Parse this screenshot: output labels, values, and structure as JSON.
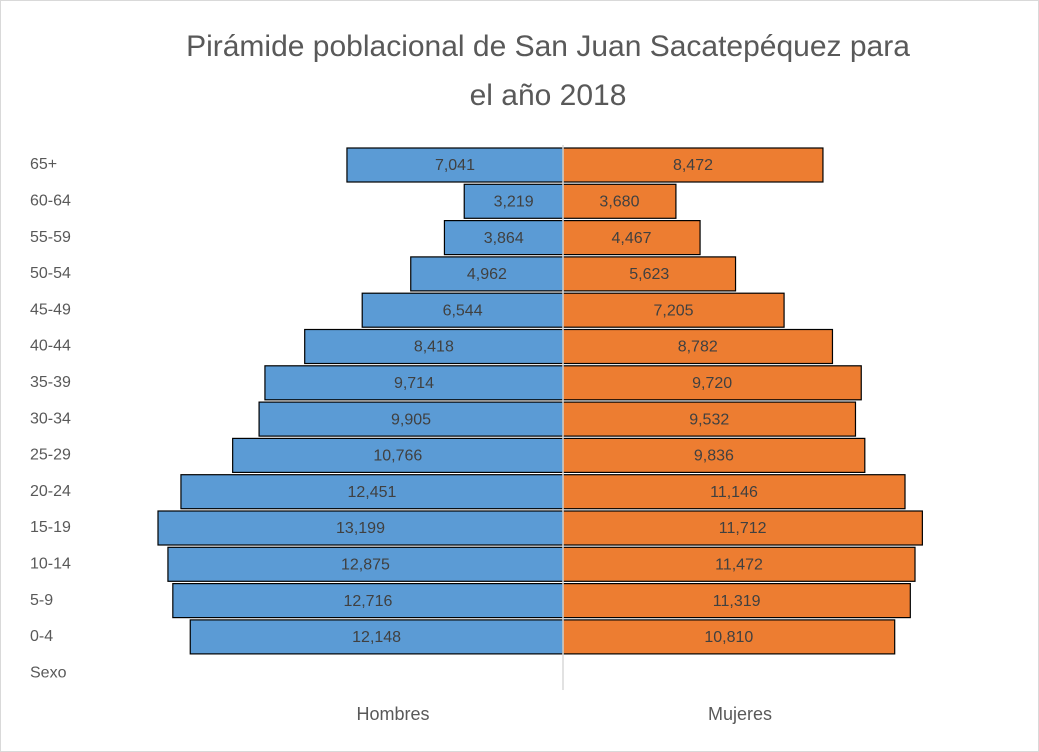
{
  "chart_data": {
    "type": "pyramid",
    "title": [
      "Pirámide poblacional de San Juan Sacatepéquez para",
      "el año 2018"
    ],
    "categories": [
      "65+",
      "60-64",
      "55-59",
      "50-54",
      "45-49",
      "40-44",
      "35-39",
      "30-34",
      "25-29",
      "20-24",
      "15-19",
      "10-14",
      "5-9",
      "0-4",
      "Sexo"
    ],
    "series": [
      {
        "name": "Hombres",
        "color": "#5b9bd5",
        "values": [
          7041,
          3219,
          3864,
          4962,
          6544,
          8418,
          9714,
          9905,
          10766,
          12451,
          13199,
          12875,
          12716,
          12148,
          null
        ],
        "value_labels": [
          "7,041",
          "3,219",
          "3,864",
          "4,962",
          "6,544",
          "8,418",
          "9,714",
          "9,905",
          "10,766",
          "12,451",
          "13,199",
          "12,875",
          "12,716",
          "12,148",
          null
        ]
      },
      {
        "name": "Mujeres",
        "color": "#ed7d31",
        "values": [
          8472,
          3680,
          4467,
          5623,
          7205,
          8782,
          9720,
          9532,
          9836,
          11146,
          11712,
          11472,
          11319,
          10810,
          null
        ],
        "value_labels": [
          "8,472",
          "3,680",
          "4,467",
          "5,623",
          "7,205",
          "8,782",
          "9,720",
          "9,532",
          "9,836",
          "11,146",
          "11,712",
          "11,472",
          "11,319",
          "10,810",
          null
        ]
      }
    ]
  }
}
